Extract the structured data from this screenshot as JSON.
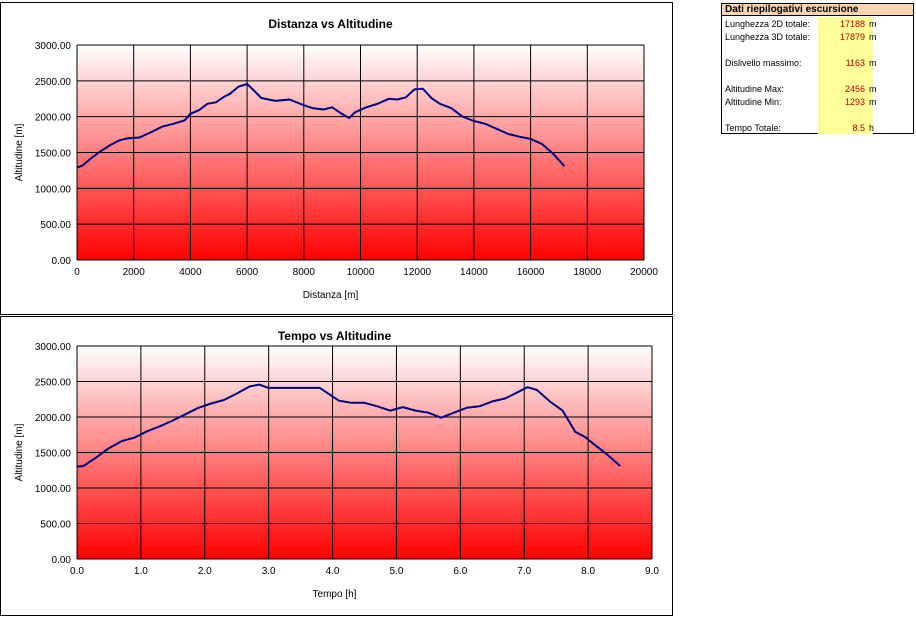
{
  "chart_data": [
    {
      "type": "line",
      "title": "Distanza vs Altitudine",
      "xlabel": "Distanza [m]",
      "ylabel": "Altitudine [m]",
      "xlim": [
        0,
        20000
      ],
      "ylim": [
        0,
        3000
      ],
      "xticks": [
        "0",
        "2000",
        "4000",
        "6000",
        "8000",
        "10000",
        "12000",
        "14000",
        "16000",
        "18000",
        "20000"
      ],
      "yticks": [
        "0.00",
        "500.00",
        "1000.00",
        "1500.00",
        "2000.00",
        "2500.00",
        "3000.00"
      ],
      "grid": true,
      "series": [
        {
          "color": "#000080",
          "x": [
            0,
            200,
            500,
            800,
            1200,
            1500,
            1800,
            2200,
            2600,
            3000,
            3400,
            3800,
            4000,
            4300,
            4600,
            4900,
            5200,
            5400,
            5700,
            6000,
            6200,
            6500,
            7000,
            7500,
            8000,
            8300,
            8700,
            9000,
            9300,
            9600,
            9800,
            10200,
            10600,
            11000,
            11300,
            11600,
            11900,
            12200,
            12500,
            12800,
            13200,
            13600,
            14000,
            14400,
            14800,
            15200,
            15600,
            16000,
            16400,
            16800,
            17188
          ],
          "y": [
            1290,
            1320,
            1420,
            1510,
            1610,
            1670,
            1700,
            1710,
            1780,
            1860,
            1900,
            1950,
            2040,
            2090,
            2180,
            2200,
            2280,
            2320,
            2420,
            2456,
            2380,
            2260,
            2220,
            2240,
            2160,
            2120,
            2100,
            2130,
            2050,
            1980,
            2060,
            2130,
            2180,
            2250,
            2240,
            2270,
            2380,
            2390,
            2260,
            2180,
            2120,
            2000,
            1940,
            1900,
            1830,
            1760,
            1720,
            1690,
            1620,
            1480,
            1310
          ]
        }
      ]
    },
    {
      "type": "line",
      "title": "Tempo vs Altitudine",
      "xlabel": "Tempo [h]",
      "ylabel": "Altitudine [m]",
      "xlim": [
        0,
        9
      ],
      "ylim": [
        0,
        3000
      ],
      "xticks": [
        "0.0",
        "1.0",
        "2.0",
        "3.0",
        "4.0",
        "5.0",
        "6.0",
        "7.0",
        "8.0",
        "9.0"
      ],
      "yticks": [
        "0.00",
        "500.00",
        "1000.00",
        "1500.00",
        "2000.00",
        "2500.00",
        "3000.00"
      ],
      "grid": true,
      "series": [
        {
          "color": "#000080",
          "x": [
            0,
            0.1,
            0.3,
            0.5,
            0.7,
            0.9,
            1.1,
            1.3,
            1.5,
            1.7,
            1.9,
            2.1,
            2.3,
            2.5,
            2.7,
            2.85,
            3.0,
            3.3,
            3.6,
            3.8,
            3.95,
            4.1,
            4.3,
            4.5,
            4.7,
            4.9,
            5.1,
            5.3,
            5.5,
            5.7,
            5.9,
            6.1,
            6.3,
            6.5,
            6.7,
            6.9,
            7.05,
            7.2,
            7.4,
            7.6,
            7.8,
            7.95,
            8.1,
            8.3,
            8.5
          ],
          "y": [
            1300,
            1310,
            1430,
            1560,
            1660,
            1710,
            1800,
            1870,
            1950,
            2040,
            2130,
            2190,
            2240,
            2330,
            2430,
            2456,
            2410,
            2410,
            2410,
            2410,
            2320,
            2230,
            2200,
            2200,
            2150,
            2090,
            2140,
            2090,
            2060,
            1990,
            2060,
            2130,
            2150,
            2220,
            2260,
            2350,
            2420,
            2380,
            2220,
            2090,
            1790,
            1720,
            1610,
            1470,
            1310
          ]
        }
      ]
    }
  ],
  "summary": {
    "title": "Dati riepilogativi escursione",
    "rows": [
      {
        "label": "Lunghezza 2D totale:",
        "value": "17188",
        "unit": "m"
      },
      {
        "label": "Lunghezza 3D totale:",
        "value": "17879",
        "unit": "m"
      },
      {
        "label": "Dislivello massimo:",
        "value": "1163",
        "unit": "m"
      },
      {
        "label": "Altitudine Max:",
        "value": "2456",
        "unit": "m"
      },
      {
        "label": "Altitudine Min:",
        "value": "1293",
        "unit": "m"
      },
      {
        "label": "Tempo Totale:",
        "value": "8.5",
        "unit": "h"
      }
    ]
  }
}
